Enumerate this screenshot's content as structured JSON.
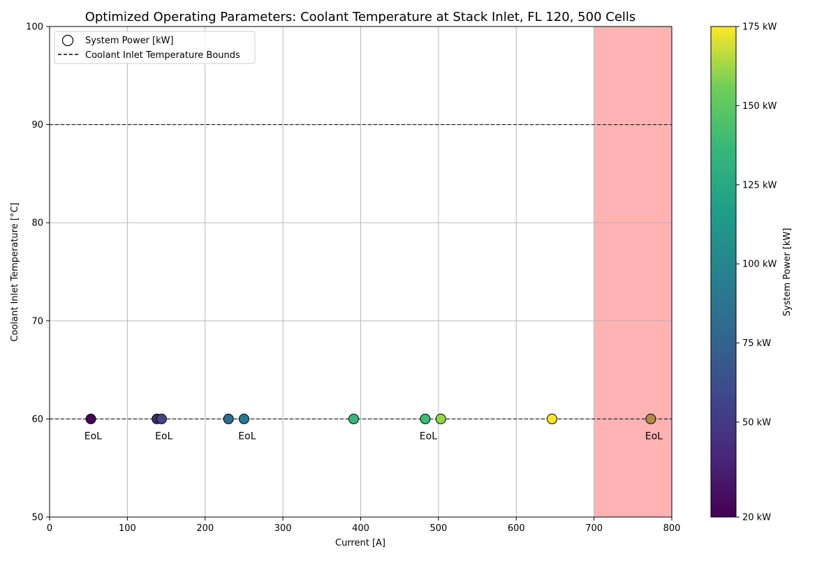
{
  "chart_data": {
    "type": "scatter",
    "title": "Optimized Operating Parameters: Coolant Temperature at Stack Inlet, FL 120, 500 Cells",
    "xlabel": "Current [A]",
    "ylabel": "Coolant Inlet Temperature [°C]",
    "xlim": [
      0,
      800
    ],
    "ylim": [
      50,
      100
    ],
    "xticks": [
      "0",
      "100",
      "200",
      "300",
      "400",
      "500",
      "600",
      "700",
      "800"
    ],
    "yticks": [
      "50",
      "60",
      "70",
      "80",
      "90",
      "100"
    ],
    "grid": true,
    "legend": {
      "placement": "top-left",
      "entries": [
        "System Power [kW]",
        "Coolant Inlet Temperature Bounds"
      ]
    },
    "bounds": [
      60,
      90
    ],
    "infeasible_region": {
      "x_from": 700,
      "x_to": 800,
      "color": "#ffb3b3"
    },
    "colorbar": {
      "label": "System Power [kW]",
      "min": 20,
      "max": 175,
      "ticks": [
        {
          "value": 20,
          "label": "20 kW"
        },
        {
          "value": 50,
          "label": "50 kW"
        },
        {
          "value": 75,
          "label": "75 kW"
        },
        {
          "value": 100,
          "label": "100 kW"
        },
        {
          "value": 125,
          "label": "125 kW"
        },
        {
          "value": 150,
          "label": "150 kW"
        },
        {
          "value": 175,
          "label": "175 kW"
        }
      ]
    },
    "points": [
      {
        "x": 53,
        "y": 60,
        "power": 20,
        "color": "#440154"
      },
      {
        "x": 138,
        "y": 60,
        "power": 40,
        "color": "#3b2d6e"
      },
      {
        "x": 144,
        "y": 60,
        "power": 50,
        "color": "#46428a"
      },
      {
        "x": 230,
        "y": 60,
        "power": 85,
        "color": "#2b6f8d"
      },
      {
        "x": 250,
        "y": 60,
        "power": 92,
        "color": "#277a8e"
      },
      {
        "x": 391,
        "y": 60,
        "power": 128,
        "color": "#35b779"
      },
      {
        "x": 483,
        "y": 60,
        "power": 130,
        "color": "#3cbb75"
      },
      {
        "x": 503,
        "y": 60,
        "power": 150,
        "color": "#8fd744"
      },
      {
        "x": 646,
        "y": 60,
        "power": 175,
        "color": "#fde725"
      },
      {
        "x": 773,
        "y": 60,
        "power": 150,
        "color": "#b08d47"
      }
    ],
    "annotations": [
      {
        "x": 56,
        "y": 58.3,
        "text": "EoL"
      },
      {
        "x": 147,
        "y": 58.3,
        "text": "EoL"
      },
      {
        "x": 254,
        "y": 58.3,
        "text": "EoL"
      },
      {
        "x": 487,
        "y": 58.3,
        "text": "EoL"
      },
      {
        "x": 777,
        "y": 58.3,
        "text": "EoL"
      }
    ]
  }
}
